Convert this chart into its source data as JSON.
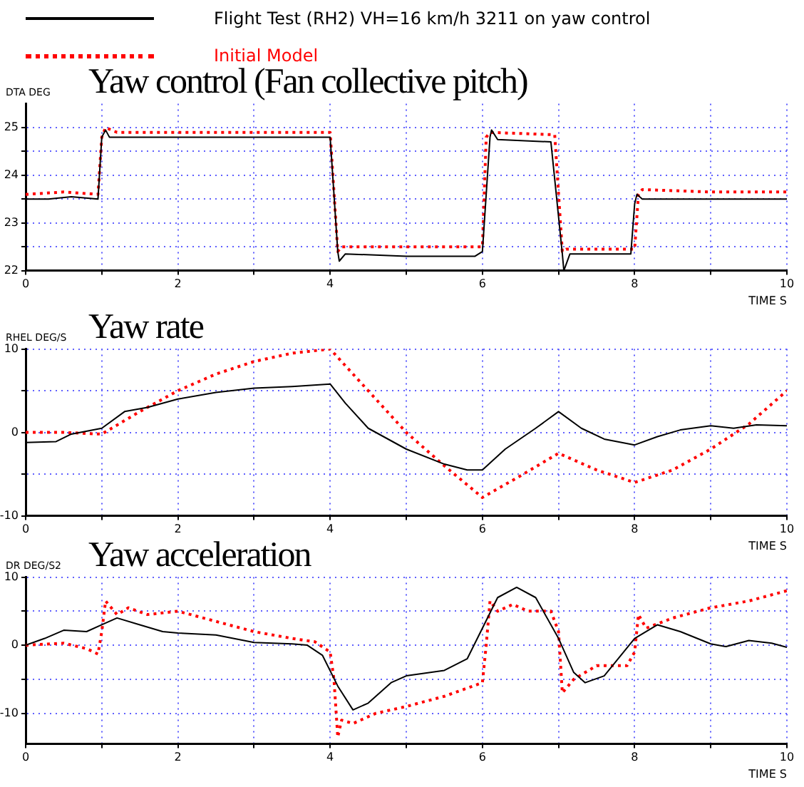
{
  "chart_data": [
    {
      "type": "line",
      "title": "Yaw control (Fan collective pitch)",
      "ylabel": "DTA DEG",
      "xlabel": "TIME S",
      "legend": "top",
      "grid": true,
      "marker": "none",
      "xlim": [
        0,
        10
      ],
      "ylim": [
        22,
        25.5
      ],
      "xticks": [
        0,
        {
          "value": 1,
          "label": null
        },
        2,
        {
          "value": 3,
          "label": null
        },
        4,
        {
          "value": 5,
          "label": null
        },
        6,
        {
          "value": 7,
          "label": null
        },
        8,
        {
          "value": 9,
          "label": null
        },
        10
      ],
      "yticks": [
        22,
        {
          "value": 22.5,
          "label": null
        },
        23,
        {
          "value": 23.5,
          "label": null
        },
        24,
        {
          "value": 24.5,
          "label": null
        },
        25
      ],
      "series": [
        {
          "name": "Flight Test (RH2) VH=16 km/h 3211 on yaw control",
          "color": "#000000",
          "line_style": "solid",
          "x": [
            0,
            0.3,
            0.6,
            0.95,
            1.0,
            1.05,
            1.1,
            2.0,
            3.0,
            4.0,
            4.1,
            4.12,
            4.2,
            5.0,
            5.9,
            6.0,
            6.1,
            6.12,
            6.2,
            6.9,
            7.05,
            7.07,
            7.15,
            7.95,
            8.0,
            8.03,
            8.1,
            9.0,
            10
          ],
          "values": [
            23.5,
            23.5,
            23.55,
            23.5,
            24.8,
            24.95,
            24.8,
            24.8,
            24.8,
            24.8,
            22.4,
            22.2,
            22.35,
            22.3,
            22.3,
            22.4,
            24.8,
            24.95,
            24.75,
            24.7,
            22.35,
            22.0,
            22.35,
            22.35,
            23.4,
            23.6,
            23.5,
            23.5,
            23.5
          ]
        },
        {
          "name": "Initial Model",
          "color": "#ff0000",
          "line_style": "dotted",
          "x": [
            0,
            0.5,
            0.95,
            1.0,
            1.05,
            1.2,
            2.0,
            3.0,
            4.0,
            4.1,
            4.15,
            5.0,
            6.0,
            6.05,
            6.1,
            6.95,
            7.05,
            7.1,
            8.0,
            8.05,
            8.1,
            9.0,
            10
          ],
          "values": [
            23.6,
            23.65,
            23.6,
            24.8,
            25.0,
            24.9,
            24.9,
            24.9,
            24.9,
            22.4,
            22.5,
            22.5,
            22.5,
            24.8,
            24.9,
            24.85,
            22.4,
            22.45,
            22.45,
            23.6,
            23.7,
            23.65,
            23.65
          ]
        }
      ]
    },
    {
      "type": "line",
      "title": "Yaw rate",
      "ylabel": "RHEL DEG/S",
      "xlabel": "TIME S",
      "grid": true,
      "marker": "none",
      "xlim": [
        0,
        10
      ],
      "ylim": [
        -10,
        10
      ],
      "xticks": [
        0,
        {
          "value": 1,
          "label": null
        },
        2,
        {
          "value": 3,
          "label": null
        },
        4,
        {
          "value": 5,
          "label": null
        },
        6,
        {
          "value": 7,
          "label": null
        },
        8,
        {
          "value": 9,
          "label": null
        },
        10
      ],
      "yticks": [
        -10,
        {
          "value": -5,
          "label": null
        },
        0,
        {
          "value": 5,
          "label": null
        },
        10
      ],
      "series": [
        {
          "color": "#000000",
          "line_style": "solid",
          "x": [
            0,
            0.4,
            0.6,
            1.0,
            1.3,
            1.6,
            2.0,
            2.5,
            3.0,
            3.5,
            4.0,
            4.2,
            4.5,
            5.0,
            5.5,
            5.8,
            6.0,
            6.3,
            6.7,
            7.0,
            7.3,
            7.6,
            8.0,
            8.3,
            8.6,
            9.0,
            9.3,
            9.6,
            10
          ],
          "values": [
            -1.2,
            -1.1,
            -0.2,
            0.5,
            2.5,
            3,
            4,
            4.8,
            5.3,
            5.5,
            5.8,
            3.5,
            0.5,
            -2,
            -3.8,
            -4.5,
            -4.5,
            -2,
            0.5,
            2.5,
            0.5,
            -0.8,
            -1.5,
            -0.5,
            0.3,
            0.8,
            0.5,
            0.9,
            0.8
          ]
        },
        {
          "color": "#ff0000",
          "line_style": "dotted",
          "x": [
            0,
            0.5,
            1.0,
            1.5,
            2.0,
            2.5,
            3.0,
            3.5,
            4.0,
            4.5,
            5.0,
            5.5,
            6.0,
            6.5,
            7.0,
            7.5,
            8.0,
            8.5,
            9.0,
            9.5,
            10
          ],
          "values": [
            0,
            0,
            -0.2,
            2.5,
            5,
            7,
            8.5,
            9.5,
            10,
            5,
            0,
            -4,
            -7.8,
            -5.2,
            -2.5,
            -4.5,
            -6,
            -4.5,
            -2,
            1,
            5
          ]
        }
      ]
    },
    {
      "type": "line",
      "title": "Yaw acceleration",
      "ylabel": "DR DEG/S2",
      "xlabel": "TIME S",
      "grid": true,
      "marker": "none",
      "xlim": [
        0,
        10
      ],
      "ylim": [
        -14.5,
        10
      ],
      "xticks": [
        0,
        {
          "value": 1,
          "label": null
        },
        2,
        {
          "value": 3,
          "label": null
        },
        4,
        {
          "value": 5,
          "label": null
        },
        6,
        {
          "value": 7,
          "label": null
        },
        8,
        {
          "value": 9,
          "label": null
        },
        10
      ],
      "yticks": [
        -10,
        {
          "value": -5,
          "label": null
        },
        0,
        {
          "value": 5,
          "label": null
        },
        10
      ],
      "series": [
        {
          "color": "#000000",
          "line_style": "solid",
          "x": [
            0,
            0.25,
            0.5,
            0.8,
            1.0,
            1.2,
            1.5,
            1.8,
            2.0,
            2.5,
            3.0,
            3.5,
            3.7,
            3.9,
            4.1,
            4.3,
            4.5,
            4.8,
            5.0,
            5.5,
            5.8,
            6.0,
            6.2,
            6.45,
            6.7,
            7.0,
            7.2,
            7.35,
            7.6,
            8.0,
            8.3,
            8.6,
            9.0,
            9.2,
            9.5,
            9.8,
            10
          ],
          "values": [
            0,
            1,
            2.2,
            2,
            3,
            4,
            3,
            2,
            1.8,
            1.5,
            0.4,
            0.2,
            0,
            -1.5,
            -6,
            -9.5,
            -8.5,
            -5.5,
            -4.5,
            -3.7,
            -2,
            2.5,
            7,
            8.5,
            7,
            1,
            -4,
            -5.5,
            -4.5,
            1,
            3,
            2,
            0.2,
            -0.2,
            0.7,
            0.3,
            -0.3
          ]
        },
        {
          "color": "#ff0000",
          "line_style": "dotted",
          "x": [
            0,
            0.5,
            0.8,
            0.95,
            1.0,
            1.05,
            1.2,
            1.35,
            1.6,
            2.0,
            2.5,
            3.0,
            3.5,
            3.8,
            4.0,
            4.05,
            4.1,
            4.15,
            4.3,
            4.6,
            5.0,
            5.5,
            6.0,
            6.05,
            6.1,
            6.2,
            6.4,
            6.6,
            6.9,
            7.0,
            7.05,
            7.2,
            7.5,
            7.9,
            8.0,
            8.05,
            8.15,
            8.5,
            9.0,
            9.5,
            10
          ],
          "values": [
            0,
            0.3,
            -0.5,
            -1.3,
            2,
            6.5,
            4.5,
            5.5,
            4.5,
            5,
            3.5,
            2,
            1,
            0.5,
            -1,
            -5,
            -13.5,
            -11,
            -11.5,
            -10,
            -9,
            -7.5,
            -5.5,
            0,
            6.5,
            5,
            6,
            5,
            5,
            2,
            -7,
            -5,
            -3,
            -3,
            -1,
            4.5,
            2.5,
            4,
            5.5,
            6.5,
            8
          ]
        }
      ]
    }
  ]
}
